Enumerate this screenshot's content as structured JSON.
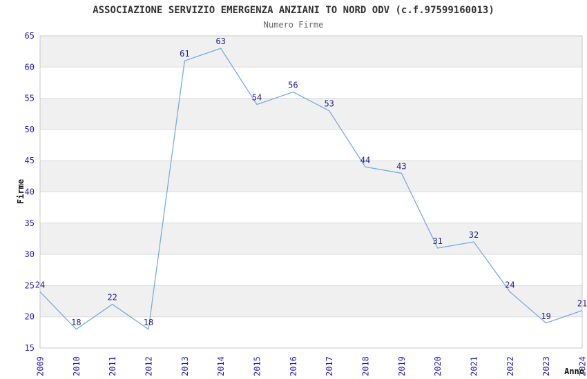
{
  "chart_data": {
    "type": "line",
    "title": "ASSOCIAZIONE SERVIZIO EMERGENZA ANZIANI TO NORD ODV (c.f.97599160013)",
    "subtitle": "Numero Firme",
    "xlabel": "Anno",
    "ylabel": "Firme",
    "categories": [
      "2009",
      "2010",
      "2011",
      "2012",
      "2013",
      "2014",
      "2015",
      "2016",
      "2017",
      "2018",
      "2019",
      "2020",
      "2021",
      "2022",
      "2023",
      "2024"
    ],
    "values": [
      24,
      18,
      22,
      18,
      61,
      63,
      54,
      56,
      53,
      44,
      43,
      31,
      32,
      24,
      19,
      21
    ],
    "ylim": [
      15,
      65
    ],
    "ytick_step": 5,
    "yticks": [
      15,
      20,
      25,
      30,
      35,
      40,
      45,
      50,
      55,
      60,
      65
    ],
    "grid": true,
    "alternating_bands": true,
    "show_data_labels": true,
    "show_point_markers": false,
    "legend_position": "none",
    "colors": {
      "line": "#74ACE6",
      "tick_label": "#2222CC",
      "data_label": "#202090",
      "band": "#F0F0F0",
      "gridline": "#DCDCDC",
      "plot_border": "#C8C8C8",
      "title": "#333333",
      "subtitle": "#666666",
      "axis_title": "#111111",
      "background": "#FFFFFF"
    }
  }
}
